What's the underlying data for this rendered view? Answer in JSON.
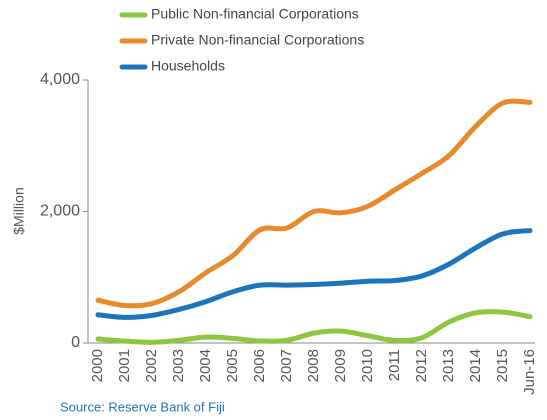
{
  "chart_data": {
    "type": "line",
    "y_label": "$Million",
    "source": "Source: Reserve Bank of Fiji",
    "categories": [
      "2000",
      "2001",
      "2002",
      "2003",
      "2004",
      "2005",
      "2006",
      "2007",
      "2008",
      "2009",
      "2010",
      "2011",
      "2012",
      "2013",
      "2014",
      "2015",
      "Jun-16"
    ],
    "series": [
      {
        "name": "Public Non-financial Corporations",
        "color": "#8dc63f",
        "values": [
          60,
          30,
          10,
          40,
          90,
          70,
          30,
          40,
          150,
          180,
          110,
          40,
          80,
          320,
          460,
          470,
          400
        ]
      },
      {
        "name": "Private Non-financial Corporations",
        "color": "#e8892b",
        "values": [
          650,
          570,
          600,
          780,
          1070,
          1330,
          1720,
          1750,
          2000,
          1980,
          2080,
          2330,
          2580,
          2850,
          3300,
          3650,
          3660
        ]
      },
      {
        "name": "Households",
        "color": "#1b75bc",
        "values": [
          430,
          390,
          420,
          510,
          630,
          780,
          880,
          880,
          890,
          910,
          940,
          950,
          1020,
          1200,
          1450,
          1660,
          1710
        ]
      }
    ],
    "ylim": [
      0,
      4000
    ],
    "yticks": [
      0,
      {
        "value": 2000,
        "label": "2,000"
      },
      {
        "value": 4000,
        "label": "4,000"
      }
    ]
  }
}
